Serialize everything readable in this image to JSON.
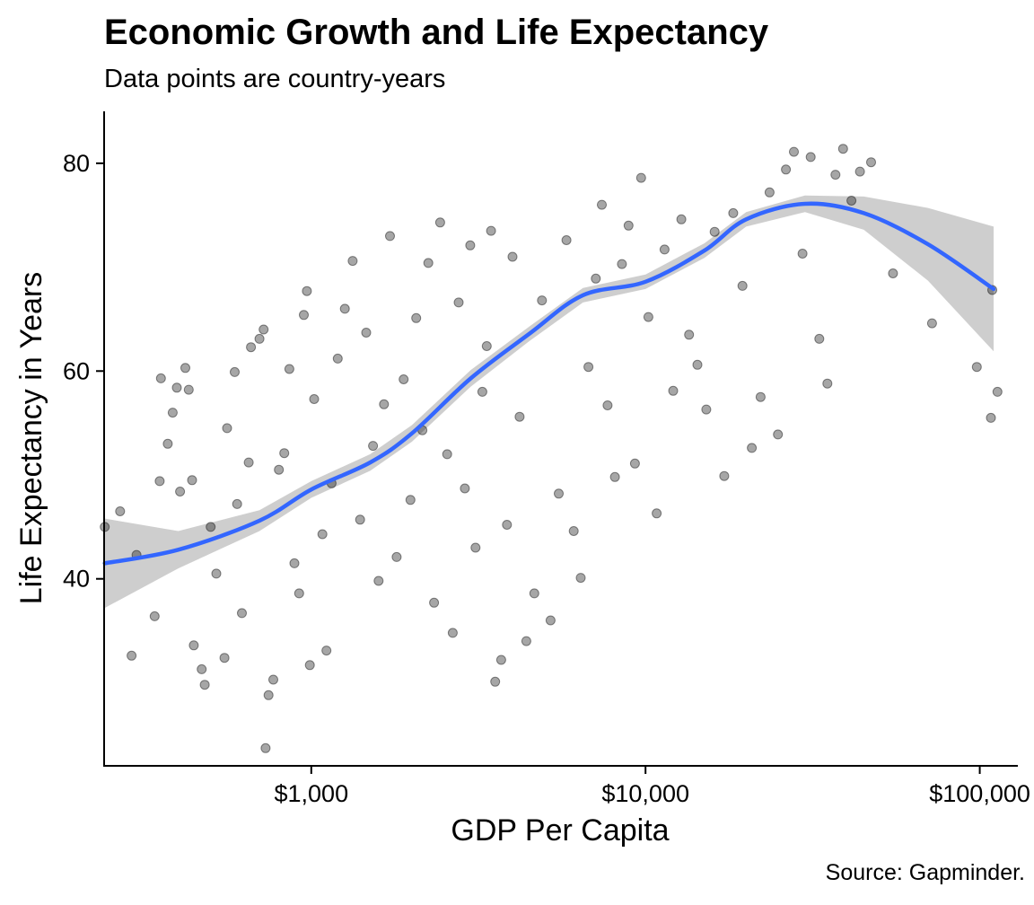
{
  "chart_data": {
    "type": "scatter",
    "title": "Economic Growth and Life Expectancy",
    "subtitle": "Data points are country-years",
    "caption": "Source: Gapminder.",
    "xlabel": "GDP Per Capita",
    "ylabel": "Life Expectancy in Years",
    "x_scale": "log10",
    "xlim": [
      240,
      130000
    ],
    "ylim": [
      22,
      85
    ],
    "x_ticks": [
      {
        "value": 1000,
        "label": "$1,000"
      },
      {
        "value": 10000,
        "label": "$10,000"
      },
      {
        "value": 100000,
        "label": "$100,000"
      }
    ],
    "y_ticks": [
      {
        "value": 40,
        "label": "40"
      },
      {
        "value": 60,
        "label": "60"
      },
      {
        "value": 80,
        "label": "80"
      }
    ],
    "grid": false,
    "colors": {
      "points": "#000000",
      "smooth_line": "#3366FF",
      "ribbon": "#BEBEBE"
    },
    "points": [
      [
        241,
        45.0
      ],
      [
        268,
        46.5
      ],
      [
        290,
        32.6
      ],
      [
        300,
        42.3
      ],
      [
        340,
        36.4
      ],
      [
        352,
        49.4
      ],
      [
        355,
        59.3
      ],
      [
        372,
        53.0
      ],
      [
        385,
        56.0
      ],
      [
        396,
        58.4
      ],
      [
        405,
        48.4
      ],
      [
        420,
        60.3
      ],
      [
        430,
        58.2
      ],
      [
        440,
        49.5
      ],
      [
        445,
        33.6
      ],
      [
        470,
        31.3
      ],
      [
        480,
        29.8
      ],
      [
        500,
        45.0
      ],
      [
        520,
        40.5
      ],
      [
        550,
        32.4
      ],
      [
        560,
        54.5
      ],
      [
        590,
        59.9
      ],
      [
        600,
        47.2
      ],
      [
        620,
        36.7
      ],
      [
        650,
        51.2
      ],
      [
        660,
        62.3
      ],
      [
        700,
        63.1
      ],
      [
        720,
        64.0
      ],
      [
        730,
        23.7
      ],
      [
        745,
        28.8
      ],
      [
        770,
        30.3
      ],
      [
        800,
        50.5
      ],
      [
        830,
        52.1
      ],
      [
        860,
        60.2
      ],
      [
        890,
        41.5
      ],
      [
        920,
        38.6
      ],
      [
        950,
        65.4
      ],
      [
        970,
        67.7
      ],
      [
        990,
        31.7
      ],
      [
        1020,
        57.3
      ],
      [
        1080,
        44.3
      ],
      [
        1110,
        33.1
      ],
      [
        1150,
        49.2
      ],
      [
        1200,
        61.2
      ],
      [
        1260,
        66.0
      ],
      [
        1330,
        70.6
      ],
      [
        1400,
        45.7
      ],
      [
        1460,
        63.7
      ],
      [
        1530,
        52.8
      ],
      [
        1590,
        39.8
      ],
      [
        1650,
        56.8
      ],
      [
        1720,
        73.0
      ],
      [
        1800,
        42.1
      ],
      [
        1890,
        59.2
      ],
      [
        1980,
        47.6
      ],
      [
        2060,
        65.1
      ],
      [
        2150,
        54.3
      ],
      [
        2240,
        70.4
      ],
      [
        2330,
        37.7
      ],
      [
        2430,
        74.3
      ],
      [
        2550,
        52.0
      ],
      [
        2650,
        34.8
      ],
      [
        2760,
        66.6
      ],
      [
        2880,
        48.7
      ],
      [
        2990,
        72.1
      ],
      [
        3100,
        43.0
      ],
      [
        3250,
        58.0
      ],
      [
        3350,
        62.4
      ],
      [
        3450,
        73.5
      ],
      [
        3550,
        30.1
      ],
      [
        3700,
        32.2
      ],
      [
        3850,
        45.2
      ],
      [
        4000,
        71.0
      ],
      [
        4200,
        55.6
      ],
      [
        4400,
        34.0
      ],
      [
        4650,
        38.6
      ],
      [
        4900,
        66.8
      ],
      [
        5200,
        36.0
      ],
      [
        5500,
        48.2
      ],
      [
        5800,
        72.6
      ],
      [
        6100,
        44.6
      ],
      [
        6400,
        40.1
      ],
      [
        6750,
        60.4
      ],
      [
        7100,
        68.9
      ],
      [
        7400,
        76.0
      ],
      [
        7700,
        56.7
      ],
      [
        8100,
        49.8
      ],
      [
        8500,
        70.3
      ],
      [
        8900,
        74.0
      ],
      [
        9300,
        51.1
      ],
      [
        9700,
        78.6
      ],
      [
        10200,
        65.2
      ],
      [
        10800,
        46.3
      ],
      [
        11400,
        71.7
      ],
      [
        12100,
        58.1
      ],
      [
        12800,
        74.6
      ],
      [
        13500,
        63.5
      ],
      [
        14300,
        60.6
      ],
      [
        15200,
        56.3
      ],
      [
        16100,
        73.4
      ],
      [
        17200,
        49.9
      ],
      [
        18300,
        75.2
      ],
      [
        19500,
        68.2
      ],
      [
        20800,
        52.6
      ],
      [
        22100,
        57.5
      ],
      [
        23500,
        77.2
      ],
      [
        24900,
        53.9
      ],
      [
        26300,
        79.4
      ],
      [
        27800,
        81.1
      ],
      [
        29500,
        71.3
      ],
      [
        31200,
        80.6
      ],
      [
        33100,
        63.1
      ],
      [
        35000,
        58.8
      ],
      [
        37000,
        78.9
      ],
      [
        39000,
        81.4
      ],
      [
        41300,
        76.4
      ],
      [
        43800,
        79.2
      ],
      [
        47300,
        80.1
      ],
      [
        55000,
        69.4
      ],
      [
        72000,
        64.6
      ],
      [
        98000,
        60.4
      ],
      [
        108000,
        55.5
      ],
      [
        113000,
        58.0
      ],
      [
        109000,
        67.8
      ]
    ],
    "smooth_curve": [
      {
        "x": 241,
        "y": 41.5,
        "lo": 37.2,
        "hi": 45.8
      },
      {
        "x": 400,
        "y": 42.8,
        "lo": 41.0,
        "hi": 44.6
      },
      {
        "x": 700,
        "y": 45.6,
        "lo": 44.6,
        "hi": 46.6
      },
      {
        "x": 1000,
        "y": 48.6,
        "lo": 47.8,
        "hi": 49.4
      },
      {
        "x": 1500,
        "y": 51.2,
        "lo": 50.4,
        "hi": 52.0
      },
      {
        "x": 2000,
        "y": 54.0,
        "lo": 53.2,
        "hi": 54.8
      },
      {
        "x": 3000,
        "y": 59.3,
        "lo": 58.5,
        "hi": 60.1
      },
      {
        "x": 4500,
        "y": 63.6,
        "lo": 62.9,
        "hi": 64.3
      },
      {
        "x": 6500,
        "y": 67.3,
        "lo": 66.6,
        "hi": 68.0
      },
      {
        "x": 10000,
        "y": 68.6,
        "lo": 67.9,
        "hi": 69.3
      },
      {
        "x": 15000,
        "y": 71.6,
        "lo": 70.9,
        "hi": 72.3
      },
      {
        "x": 20000,
        "y": 74.6,
        "lo": 73.9,
        "hi": 75.3
      },
      {
        "x": 30000,
        "y": 76.1,
        "lo": 75.3,
        "hi": 76.9
      },
      {
        "x": 45000,
        "y": 75.2,
        "lo": 73.6,
        "hi": 76.8
      },
      {
        "x": 70000,
        "y": 72.2,
        "lo": 68.7,
        "hi": 75.7
      },
      {
        "x": 110000,
        "y": 67.9,
        "lo": 61.9,
        "hi": 73.9
      }
    ]
  }
}
